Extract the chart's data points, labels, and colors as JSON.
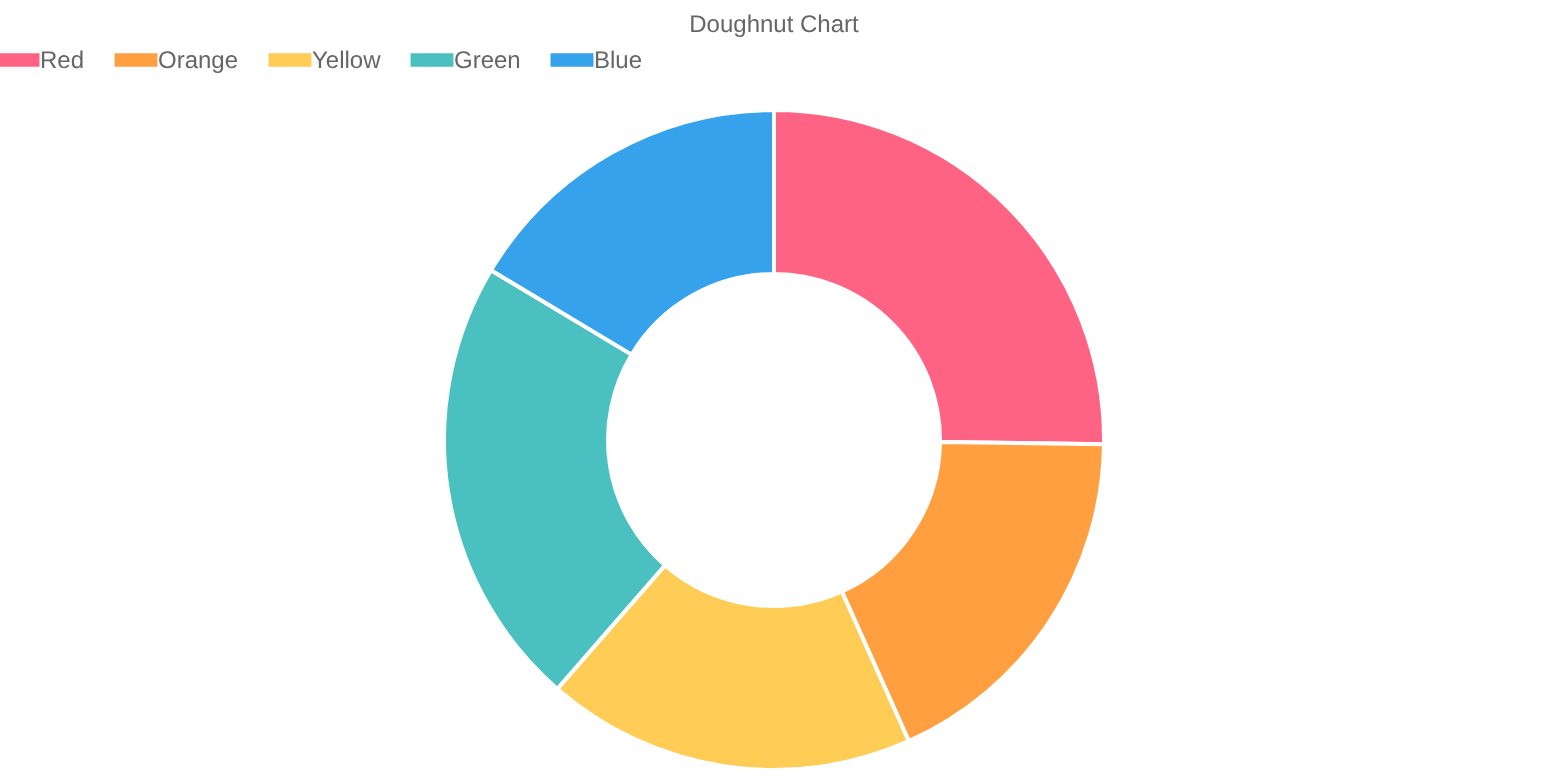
{
  "chart_data": {
    "type": "donut",
    "title": "Doughnut Chart",
    "categories": [
      "Red",
      "Orange",
      "Yellow",
      "Green",
      "Blue"
    ],
    "values": [
      25.2,
      18.1,
      18.1,
      22.2,
      16.4
    ],
    "colors": [
      "#ff6384",
      "#ff9f40",
      "#ffcd56",
      "#4bc0c0",
      "#36a2eb"
    ],
    "legend": "top"
  }
}
